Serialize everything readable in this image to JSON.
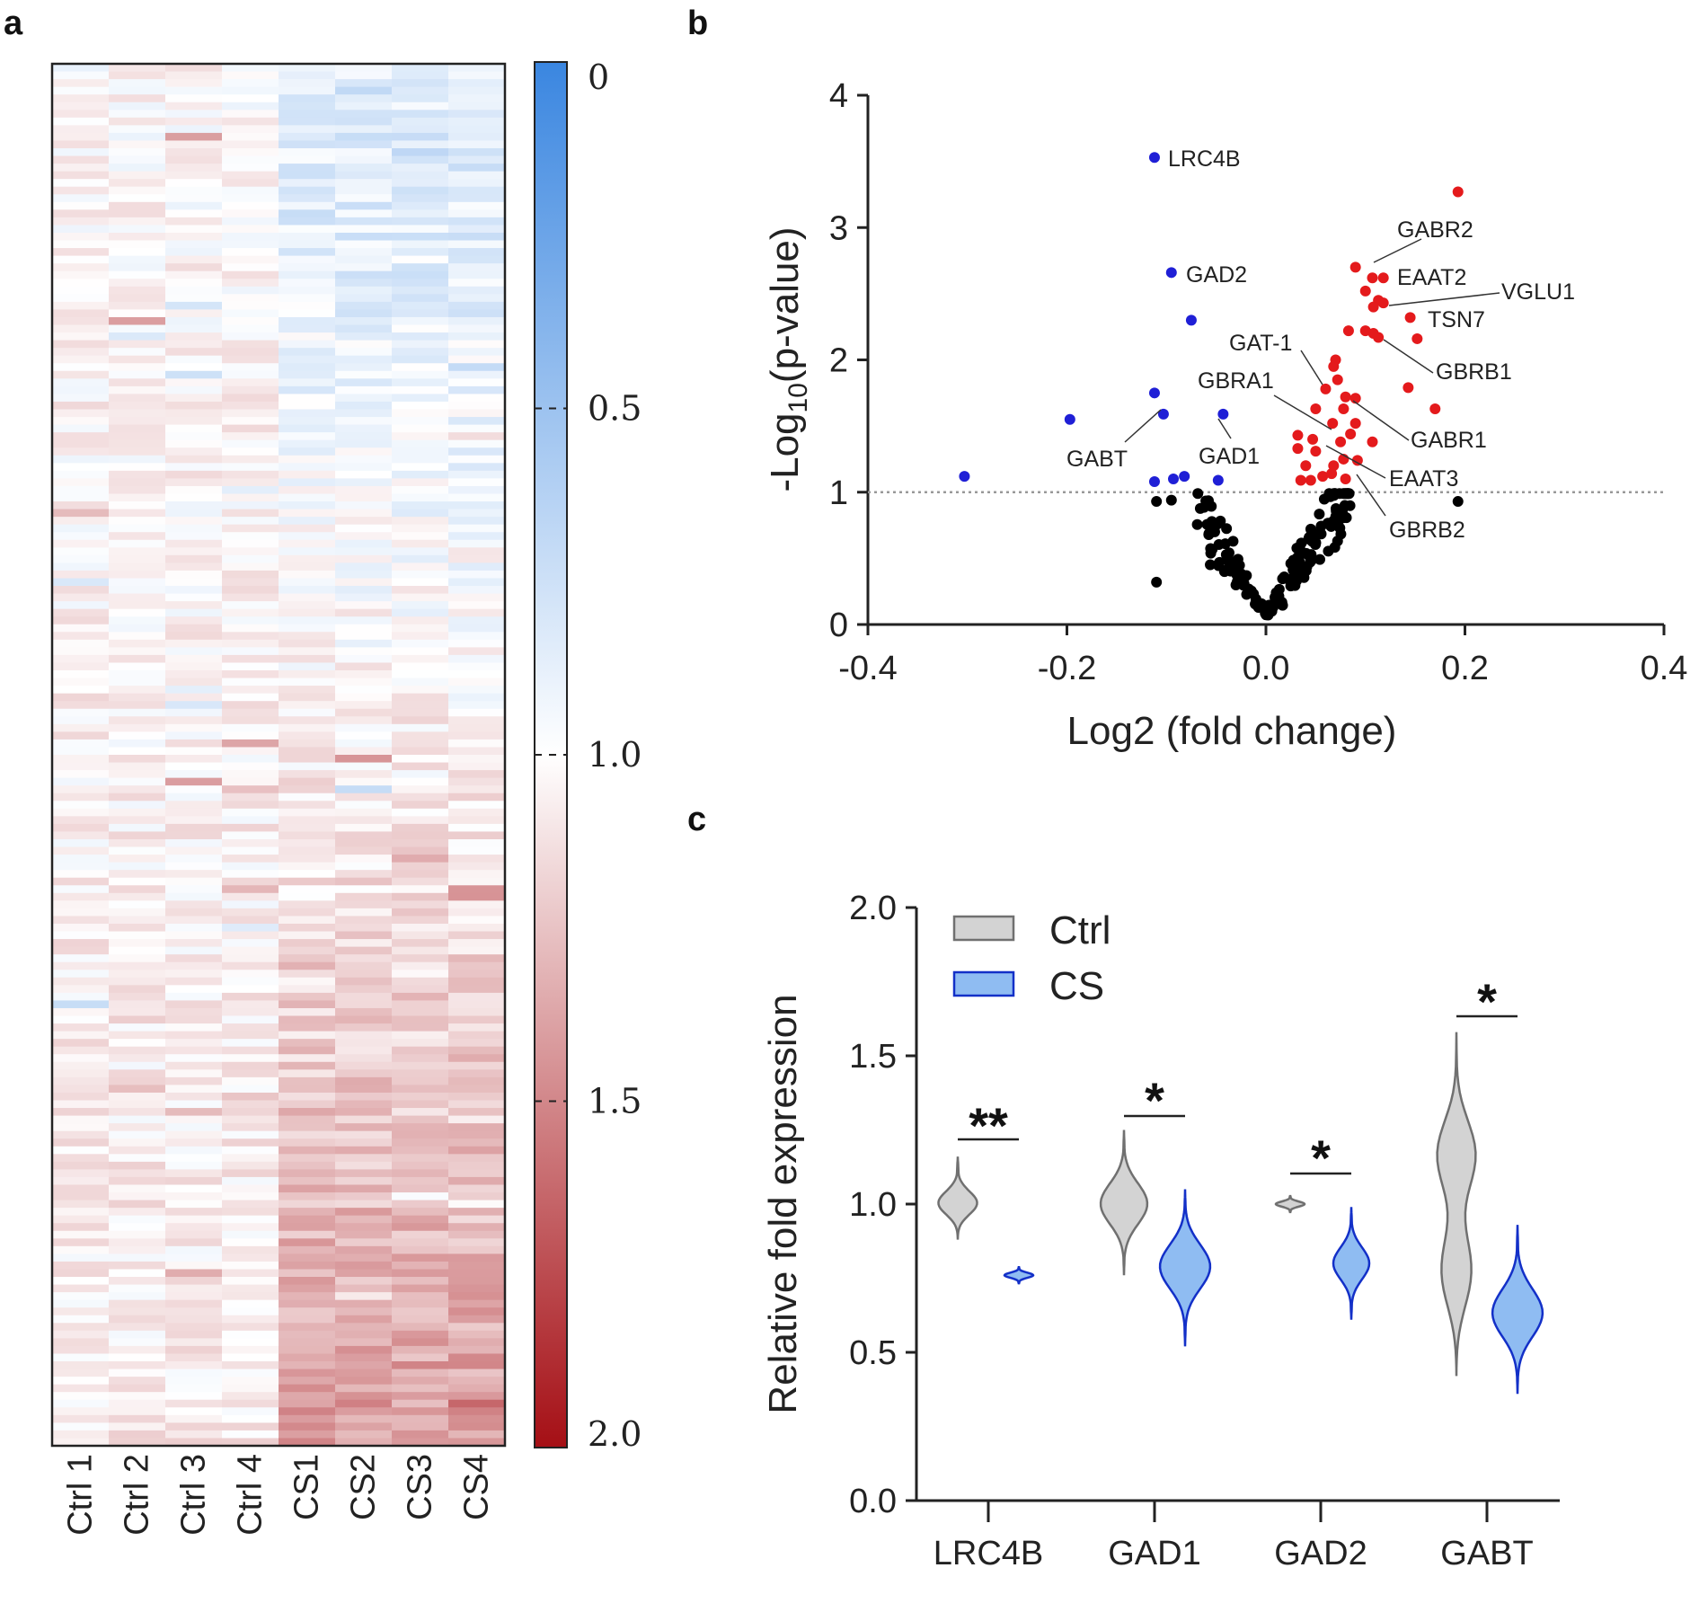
{
  "panels": {
    "a": "a",
    "b": "b",
    "c": "c"
  },
  "chart_data": [
    {
      "type": "heatmap",
      "panel": "a",
      "columns": [
        "Ctrl 1",
        "Ctrl 2",
        "Ctrl 3",
        "Ctrl 4",
        "CS1",
        "CS2",
        "CS3",
        "CS4"
      ],
      "n_rows": 180,
      "colorbar": {
        "range": [
          0,
          2.0
        ],
        "ticks": [
          "0",
          "0.5",
          "1.0",
          "1.5",
          "2.0"
        ],
        "low_color": "#3a86e0",
        "mid_color": "#ffffff",
        "high_color": "#a50f15"
      }
    },
    {
      "type": "scatter",
      "panel": "b",
      "xlabel": "Log2 (fold change)",
      "ylabel": "-Log10(p-value)",
      "xlim": [
        -0.4,
        0.4
      ],
      "ylim": [
        0,
        4
      ],
      "xticks": [
        "-0.4",
        "-0.2",
        "0.0",
        "0.2",
        "0.4"
      ],
      "yticks": [
        "0",
        "1",
        "2",
        "3",
        "4"
      ],
      "threshold_y": 1,
      "colors": {
        "down": "#1f1fd6",
        "up": "#e41a1c",
        "ns": "#000000"
      },
      "blue_points": [
        [
          -0.112,
          3.53
        ],
        [
          -0.095,
          2.66
        ],
        [
          -0.075,
          2.3
        ],
        [
          -0.112,
          1.75
        ],
        [
          -0.103,
          1.59
        ],
        [
          -0.197,
          1.55
        ],
        [
          -0.303,
          1.12
        ],
        [
          -0.112,
          1.08
        ],
        [
          -0.093,
          1.1
        ],
        [
          -0.082,
          1.12
        ],
        [
          -0.048,
          1.09
        ],
        [
          -0.043,
          1.59
        ]
      ],
      "red_points": [
        [
          0.193,
          3.27
        ],
        [
          0.09,
          2.7
        ],
        [
          0.107,
          2.62
        ],
        [
          0.118,
          2.62
        ],
        [
          0.1,
          2.52
        ],
        [
          0.113,
          2.45
        ],
        [
          0.118,
          2.43
        ],
        [
          0.108,
          2.4
        ],
        [
          0.145,
          2.32
        ],
        [
          0.108,
          2.2
        ],
        [
          0.083,
          2.22
        ],
        [
          0.1,
          2.22
        ],
        [
          0.113,
          2.17
        ],
        [
          0.152,
          2.16
        ],
        [
          0.07,
          2.0
        ],
        [
          0.068,
          1.95
        ],
        [
          0.072,
          1.85
        ],
        [
          0.143,
          1.79
        ],
        [
          0.06,
          1.78
        ],
        [
          0.08,
          1.72
        ],
        [
          0.09,
          1.71
        ],
        [
          0.05,
          1.63
        ],
        [
          0.078,
          1.63
        ],
        [
          0.17,
          1.63
        ],
        [
          0.09,
          1.52
        ],
        [
          0.067,
          1.52
        ],
        [
          0.047,
          1.4
        ],
        [
          0.032,
          1.43
        ],
        [
          0.085,
          1.44
        ],
        [
          0.107,
          1.38
        ],
        [
          0.075,
          1.38
        ],
        [
          0.032,
          1.33
        ],
        [
          0.05,
          1.31
        ],
        [
          0.078,
          1.25
        ],
        [
          0.092,
          1.24
        ],
        [
          0.068,
          1.2
        ],
        [
          0.04,
          1.2
        ],
        [
          0.057,
          1.12
        ],
        [
          0.066,
          1.14
        ],
        [
          0.045,
          1.09
        ],
        [
          0.08,
          1.1
        ],
        [
          0.035,
          1.09
        ]
      ],
      "labels": [
        {
          "text": "LRC4B"
        },
        {
          "text": "GAD2"
        },
        {
          "text": "GABT"
        },
        {
          "text": "GAD1"
        },
        {
          "text": "GABR2"
        },
        {
          "text": "EAAT2"
        },
        {
          "text": "VGLU1"
        },
        {
          "text": "TSN7"
        },
        {
          "text": "GAT-1"
        },
        {
          "text": "GBRB1"
        },
        {
          "text": "GBRA1"
        },
        {
          "text": "GABR1"
        },
        {
          "text": "EAAT3"
        },
        {
          "text": "GBRB2"
        }
      ]
    },
    {
      "type": "violin",
      "panel": "c",
      "ylabel": "Relative fold expression",
      "ylim": [
        0,
        2.0
      ],
      "yticks": [
        "0.0",
        "0.5",
        "1.0",
        "1.5",
        "2.0"
      ],
      "categories": [
        "LRC4B",
        "GAD1",
        "GAD2",
        "GABT"
      ],
      "series": [
        {
          "name": "Ctrl",
          "fill": "#d3d3d3",
          "stroke": "#707070",
          "ranges": [
            [
              0.88,
              1.16
            ],
            [
              0.76,
              1.25
            ],
            [
              0.97,
              1.03
            ],
            [
              0.42,
              1.58
            ]
          ],
          "medians": [
            1.0,
            1.0,
            1.0,
            1.0
          ]
        },
        {
          "name": "CS",
          "fill": "#8fbcf2",
          "stroke": "#1330c8",
          "ranges": [
            [
              0.73,
              0.79
            ],
            [
              0.52,
              1.05
            ],
            [
              0.61,
              0.99
            ],
            [
              0.36,
              0.93
            ]
          ],
          "medians": [
            0.76,
            0.79,
            0.8,
            0.63
          ]
        }
      ],
      "significance": [
        "**",
        "*",
        "*",
        "*"
      ]
    }
  ]
}
